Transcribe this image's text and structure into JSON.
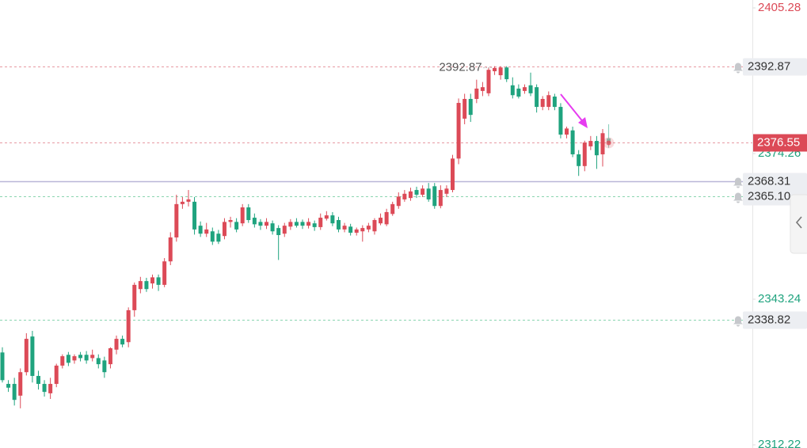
{
  "chart_data": {
    "type": "candlestick",
    "ylim": [
      2311.55,
      2406.97
    ],
    "yticks": [
      2312.22,
      2343.24,
      2374.26,
      2405.28
    ],
    "up_color": "#dc4a57",
    "down_color": "#1fa37e",
    "max_marker": 2392.87,
    "ohlc": [
      [
        2331.9,
        2333.0,
        2325.5,
        2326.0
      ],
      [
        2325.2,
        2326.0,
        2323.5,
        2324.4
      ],
      [
        2325.2,
        2326.5,
        2320.6,
        2321.8
      ],
      [
        2322.7,
        2328.5,
        2320.0,
        2327.7
      ],
      [
        2327.7,
        2336.0,
        2327.0,
        2334.8
      ],
      [
        2335.3,
        2336.5,
        2325.5,
        2326.9
      ],
      [
        2326.9,
        2328.0,
        2324.0,
        2325.2
      ],
      [
        2325.2,
        2326.0,
        2322.5,
        2323.5
      ],
      [
        2323.2,
        2326.5,
        2322.0,
        2325.2
      ],
      [
        2325.2,
        2329.5,
        2324.5,
        2329.1
      ],
      [
        2329.1,
        2331.5,
        2328.5,
        2331.1
      ],
      [
        2331.4,
        2332.0,
        2329.0,
        2329.7
      ],
      [
        2330.2,
        2331.5,
        2329.5,
        2331.1
      ],
      [
        2331.4,
        2332.0,
        2330.0,
        2330.7
      ],
      [
        2331.4,
        2332.2,
        2329.5,
        2330.2
      ],
      [
        2330.7,
        2332.5,
        2330.0,
        2331.4
      ],
      [
        2330.7,
        2331.5,
        2328.5,
        2329.4
      ],
      [
        2330.2,
        2331.0,
        2326.5,
        2327.7
      ],
      [
        2329.4,
        2333.0,
        2328.5,
        2332.8
      ],
      [
        2332.5,
        2335.5,
        2331.5,
        2334.8
      ],
      [
        2334.8,
        2335.5,
        2333.0,
        2333.6
      ],
      [
        2334.1,
        2341.5,
        2333.0,
        2340.9
      ],
      [
        2340.9,
        2346.8,
        2339.5,
        2346.3
      ],
      [
        2345.4,
        2348.0,
        2344.5,
        2347.1
      ],
      [
        2347.1,
        2347.8,
        2344.8,
        2345.4
      ],
      [
        2346.6,
        2348.5,
        2345.5,
        2347.9
      ],
      [
        2347.9,
        2348.5,
        2345.0,
        2346.3
      ],
      [
        2346.3,
        2352.0,
        2345.8,
        2351.3
      ],
      [
        2351.3,
        2357.5,
        2350.5,
        2356.4
      ],
      [
        2356.4,
        2365.5,
        2355.5,
        2363.5
      ],
      [
        2363.5,
        2365.0,
        2362.5,
        2364.0
      ],
      [
        2364.0,
        2366.5,
        2363.0,
        2364.5
      ],
      [
        2364.0,
        2365.0,
        2357.0,
        2358.1
      ],
      [
        2358.9,
        2359.8,
        2356.5,
        2357.2
      ],
      [
        2357.2,
        2359.5,
        2356.5,
        2358.1
      ],
      [
        2357.7,
        2358.5,
        2354.8,
        2355.5
      ],
      [
        2357.2,
        2358.0,
        2355.0,
        2355.5
      ],
      [
        2356.7,
        2360.5,
        2356.0,
        2359.7
      ],
      [
        2359.7,
        2360.8,
        2358.5,
        2360.1
      ],
      [
        2359.7,
        2360.5,
        2357.5,
        2358.1
      ],
      [
        2359.4,
        2363.5,
        2358.8,
        2362.8
      ],
      [
        2362.8,
        2363.5,
        2359.5,
        2360.1
      ],
      [
        2360.6,
        2361.5,
        2358.5,
        2359.2
      ],
      [
        2359.7,
        2360.3,
        2358.0,
        2358.9
      ],
      [
        2358.9,
        2360.5,
        2358.2,
        2359.7
      ],
      [
        2359.4,
        2360.0,
        2357.0,
        2357.7
      ],
      [
        2358.4,
        2359.0,
        2351.6,
        2356.9
      ],
      [
        2357.2,
        2359.5,
        2356.5,
        2358.9
      ],
      [
        2358.7,
        2360.3,
        2358.0,
        2359.7
      ],
      [
        2359.7,
        2360.5,
        2358.5,
        2358.9
      ],
      [
        2359.7,
        2360.2,
        2358.2,
        2358.9
      ],
      [
        2358.9,
        2360.5,
        2358.3,
        2359.7
      ],
      [
        2359.4,
        2360.0,
        2357.8,
        2358.6
      ],
      [
        2358.6,
        2361.5,
        2358.0,
        2360.6
      ],
      [
        2360.4,
        2362.0,
        2360.0,
        2361.1
      ],
      [
        2361.1,
        2361.8,
        2358.8,
        2359.4
      ],
      [
        2360.1,
        2360.8,
        2357.5,
        2358.1
      ],
      [
        2358.1,
        2359.5,
        2357.5,
        2358.9
      ],
      [
        2358.7,
        2359.3,
        2356.8,
        2357.4
      ],
      [
        2357.4,
        2358.5,
        2356.8,
        2358.1
      ],
      [
        2357.7,
        2359.0,
        2355.5,
        2358.4
      ],
      [
        2358.1,
        2359.5,
        2357.5,
        2358.9
      ],
      [
        2357.7,
        2360.5,
        2357.0,
        2360.1
      ],
      [
        2359.4,
        2361.5,
        2359.0,
        2360.6
      ],
      [
        2359.2,
        2362.5,
        2358.8,
        2361.8
      ],
      [
        2361.4,
        2364.0,
        2361.0,
        2363.5
      ],
      [
        2363.1,
        2366.0,
        2362.5,
        2365.1
      ],
      [
        2364.5,
        2366.5,
        2364.0,
        2365.7
      ],
      [
        2364.8,
        2367.0,
        2364.2,
        2366.2
      ],
      [
        2366.5,
        2367.2,
        2364.8,
        2365.5
      ],
      [
        2365.5,
        2367.5,
        2365.0,
        2366.8
      ],
      [
        2366.8,
        2368.0,
        2364.0,
        2364.5
      ],
      [
        2367.3,
        2368.0,
        2362.5,
        2363.1
      ],
      [
        2363.1,
        2367.5,
        2362.6,
        2366.5
      ],
      [
        2365.7,
        2367.5,
        2365.0,
        2366.8
      ],
      [
        2366.5,
        2374.0,
        2366.0,
        2373.2
      ],
      [
        2373.2,
        2386.0,
        2372.0,
        2385.05
      ],
      [
        2381.7,
        2387.0,
        2380.5,
        2385.9
      ],
      [
        2385.9,
        2387.0,
        2381.0,
        2382.5
      ],
      [
        2385.9,
        2390.0,
        2385.0,
        2388.1
      ],
      [
        2387.6,
        2389.5,
        2386.5,
        2388.4
      ],
      [
        2387.1,
        2392.5,
        2386.5,
        2392.1
      ],
      [
        2391.8,
        2392.87,
        2391.0,
        2392.5
      ],
      [
        2390.95,
        2392.87,
        2390.0,
        2392.6
      ],
      [
        2392.6,
        2392.87,
        2389.5,
        2390.1
      ],
      [
        2388.8,
        2390.5,
        2386.0,
        2386.7
      ],
      [
        2388.1,
        2389.0,
        2386.0,
        2386.4
      ],
      [
        2387.6,
        2389.0,
        2387.0,
        2388.4
      ],
      [
        2388.8,
        2391.5,
        2386.5,
        2387.1
      ],
      [
        2388.4,
        2389.0,
        2383.0,
        2384.2
      ],
      [
        2384.2,
        2386.5,
        2383.5,
        2385.9
      ],
      [
        2384.2,
        2387.5,
        2383.5,
        2386.7
      ],
      [
        2386.4,
        2387.0,
        2383.5,
        2384.2
      ],
      [
        2384.2,
        2385.0,
        2377.5,
        2378.3
      ],
      [
        2378.3,
        2380.0,
        2377.5,
        2379.6
      ],
      [
        2379.2,
        2380.0,
        2373.5,
        2374.1
      ],
      [
        2374.1,
        2375.0,
        2369.5,
        2371.6
      ],
      [
        2371.6,
        2377.0,
        2370.5,
        2376.6
      ],
      [
        2375.8,
        2378.0,
        2375.0,
        2376.95
      ],
      [
        2376.95,
        2378.0,
        2371.0,
        2373.9
      ],
      [
        2374.1,
        2379.5,
        2371.5,
        2378.6
      ],
      [
        2377.5,
        2380.5,
        2375.5,
        2376.55
      ]
    ],
    "levels": [
      {
        "value": 2392.87,
        "color": "#e79aa2",
        "style": "dashed",
        "alert": true
      },
      {
        "value": 2376.55,
        "color": "#e79aa2",
        "style": "dashed",
        "current": true
      },
      {
        "value": 2368.31,
        "color": "#b9b6d8",
        "style": "solid",
        "alert": true
      },
      {
        "value": {
          "value": 2365.1,
          "label": "2365.10"
        },
        "color": "#8ad4b0",
        "style": "dashed",
        "alert": true
      },
      {
        "value": 2338.82,
        "color": "#8ad4b0",
        "style": "dashed",
        "alert": true
      }
    ]
  }
}
